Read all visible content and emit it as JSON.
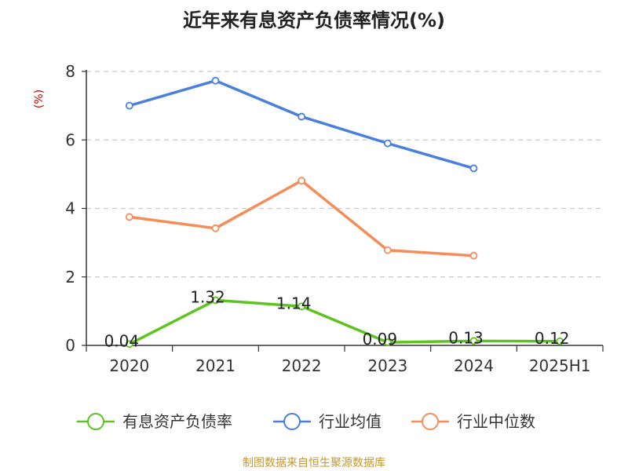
{
  "chart_data": {
    "type": "line",
    "title": "近年来有息资产负债率情况(%)",
    "ylabel": "(%)",
    "categories": [
      "2020",
      "2021",
      "2022",
      "2023",
      "2024",
      "2025H1"
    ],
    "ylim": [
      0,
      8
    ],
    "yticks": [
      0,
      2,
      4,
      6,
      8
    ],
    "grid": true,
    "legend_position": "bottom",
    "series": [
      {
        "name": "有息资产负债率",
        "color": "#5dc41f",
        "values": [
          0.04,
          1.32,
          1.14,
          0.09,
          0.13,
          0.12
        ],
        "labels": [
          "0.04",
          "1.32",
          "1.14",
          "0.09",
          "0.13",
          "0.12"
        ]
      },
      {
        "name": "行业均值",
        "color": "#4a7fdb",
        "values": [
          7.0,
          7.73,
          6.68,
          5.9,
          5.17,
          null
        ]
      },
      {
        "name": "行业中位数",
        "color": "#f58d5a",
        "values": [
          3.75,
          3.42,
          4.81,
          2.78,
          2.62,
          null
        ]
      }
    ],
    "source": "制图数据来自恒生聚源数据库"
  }
}
